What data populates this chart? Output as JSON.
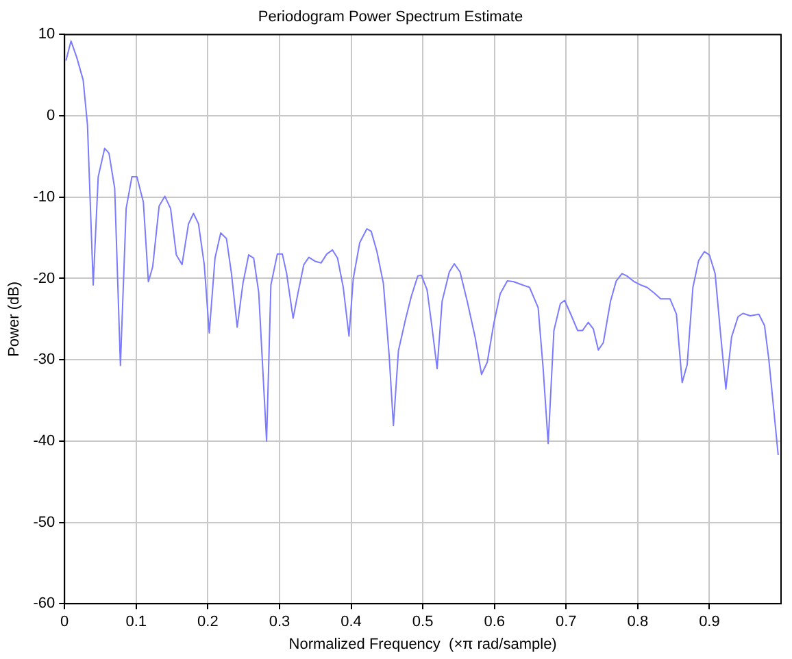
{
  "chart_data": {
    "type": "line",
    "title": "Periodogram Power Spectrum Estimate",
    "xlabel": "Normalized Frequency  (×π rad/sample)",
    "ylabel": "Power (dB)",
    "xlim": [
      0,
      1
    ],
    "ylim": [
      -60,
      10
    ],
    "xticks": [
      0,
      0.1,
      0.2,
      0.3,
      0.4,
      0.5,
      0.6,
      0.7,
      0.8,
      0.9
    ],
    "yticks": [
      -60,
      -50,
      -40,
      -30,
      -20,
      -10,
      0,
      10
    ],
    "grid": true,
    "legend": false,
    "marker": "none",
    "line_style": "solid",
    "series": [
      {
        "color": "#7b7bff",
        "x": [
          0.002,
          0.009,
          0.017,
          0.026,
          0.032,
          0.04,
          0.047,
          0.056,
          0.062,
          0.07,
          0.078,
          0.086,
          0.094,
          0.101,
          0.11,
          0.117,
          0.123,
          0.132,
          0.14,
          0.148,
          0.156,
          0.164,
          0.173,
          0.18,
          0.187,
          0.195,
          0.202,
          0.21,
          0.218,
          0.226,
          0.233,
          0.241,
          0.249,
          0.257,
          0.264,
          0.271,
          0.282,
          0.288,
          0.297,
          0.304,
          0.31,
          0.319,
          0.326,
          0.334,
          0.341,
          0.35,
          0.358,
          0.366,
          0.374,
          0.381,
          0.389,
          0.397,
          0.403,
          0.412,
          0.422,
          0.428,
          0.436,
          0.445,
          0.453,
          0.459,
          0.466,
          0.476,
          0.484,
          0.493,
          0.498,
          0.506,
          0.513,
          0.52,
          0.527,
          0.537,
          0.544,
          0.552,
          0.562,
          0.573,
          0.582,
          0.59,
          0.599,
          0.608,
          0.618,
          0.627,
          0.636,
          0.649,
          0.661,
          0.668,
          0.675,
          0.683,
          0.692,
          0.698,
          0.708,
          0.716,
          0.723,
          0.731,
          0.738,
          0.745,
          0.752,
          0.762,
          0.77,
          0.778,
          0.785,
          0.795,
          0.804,
          0.813,
          0.823,
          0.832,
          0.845,
          0.854,
          0.862,
          0.869,
          0.877,
          0.885,
          0.893,
          0.9,
          0.908,
          0.916,
          0.923,
          0.931,
          0.94,
          0.947,
          0.957,
          0.969,
          0.977,
          0.983,
          0.996
        ],
        "values": [
          6.8,
          9.2,
          7.2,
          4.4,
          -1.1,
          -20.8,
          -7.5,
          -4.0,
          -4.6,
          -8.9,
          -30.7,
          -11.4,
          -7.5,
          -7.5,
          -10.6,
          -20.4,
          -18.6,
          -11.1,
          -9.9,
          -11.4,
          -17.1,
          -18.3,
          -13.3,
          -12.0,
          -13.3,
          -18.3,
          -26.7,
          -17.5,
          -14.4,
          -15.1,
          -19.4,
          -26.0,
          -20.6,
          -17.1,
          -17.5,
          -21.7,
          -40.0,
          -20.8,
          -17.0,
          -17.0,
          -19.4,
          -24.9,
          -21.7,
          -18.3,
          -17.4,
          -17.9,
          -18.1,
          -17.0,
          -16.5,
          -17.5,
          -21.1,
          -27.1,
          -20.0,
          -15.6,
          -13.9,
          -14.2,
          -16.7,
          -20.6,
          -29.4,
          -38.1,
          -28.9,
          -25.0,
          -22.2,
          -19.7,
          -19.6,
          -21.4,
          -26.1,
          -31.1,
          -22.8,
          -19.2,
          -18.2,
          -19.2,
          -22.8,
          -27.2,
          -31.8,
          -30.3,
          -25.6,
          -21.9,
          -20.3,
          -20.4,
          -20.7,
          -21.1,
          -23.6,
          -31.1,
          -40.3,
          -26.4,
          -23.1,
          -22.7,
          -24.7,
          -26.4,
          -26.4,
          -25.4,
          -26.2,
          -28.8,
          -27.9,
          -22.8,
          -20.3,
          -19.4,
          -19.7,
          -20.4,
          -20.8,
          -21.1,
          -21.8,
          -22.5,
          -22.5,
          -24.4,
          -32.8,
          -30.6,
          -21.1,
          -17.8,
          -16.7,
          -17.1,
          -19.4,
          -27.2,
          -33.6,
          -27.2,
          -24.7,
          -24.3,
          -24.6,
          -24.4,
          -25.8,
          -30.0,
          -41.7
        ]
      }
    ]
  }
}
